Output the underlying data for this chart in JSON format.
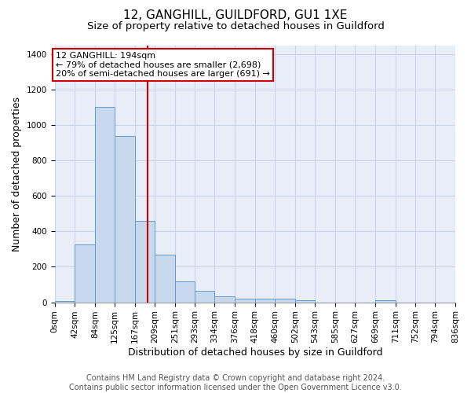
{
  "title": "12, GANGHILL, GUILDFORD, GU1 1XE",
  "subtitle": "Size of property relative to detached houses in Guildford",
  "xlabel": "Distribution of detached houses by size in Guildford",
  "ylabel": "Number of detached properties",
  "footer1": "Contains HM Land Registry data © Crown copyright and database right 2024.",
  "footer2": "Contains public sector information licensed under the Open Government Licence v3.0.",
  "bins": [
    0,
    42,
    84,
    125,
    167,
    209,
    251,
    293,
    334,
    376,
    418,
    460,
    502,
    543,
    585,
    627,
    669,
    711,
    752,
    794,
    836
  ],
  "bar_heights": [
    5,
    325,
    1100,
    940,
    460,
    270,
    120,
    65,
    35,
    20,
    20,
    20,
    10,
    0,
    0,
    0,
    10,
    0,
    0,
    0
  ],
  "bar_color": "#c8d9ee",
  "bar_edge_color": "#6699cc",
  "grid_color": "#c8d4e8",
  "background_color": "#e8eef8",
  "vline_x": 194,
  "vline_color": "#cc0000",
  "annotation_text": "12 GANGHILL: 194sqm\n← 79% of detached houses are smaller (2,698)\n20% of semi-detached houses are larger (691) →",
  "annotation_box_color": "white",
  "annotation_box_edge": "#cc0000",
  "ylim": [
    0,
    1450
  ],
  "yticks": [
    0,
    200,
    400,
    600,
    800,
    1000,
    1200,
    1400
  ],
  "title_fontsize": 11,
  "subtitle_fontsize": 9.5,
  "tick_fontsize": 7.5,
  "label_fontsize": 9,
  "footer_fontsize": 7,
  "annot_fontsize": 8
}
